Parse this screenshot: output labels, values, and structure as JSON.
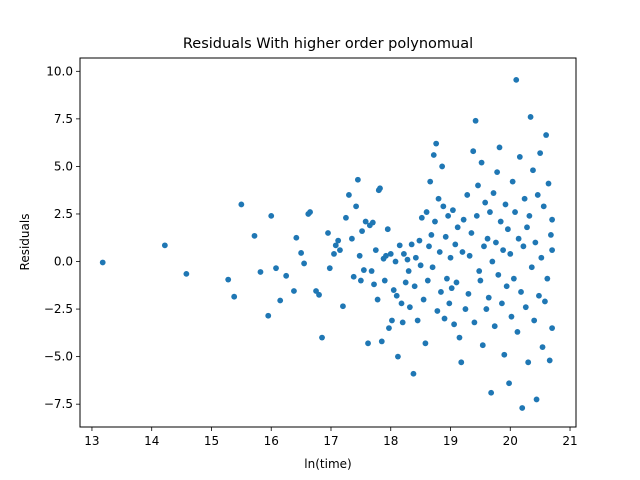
{
  "chart_data": {
    "type": "scatter",
    "title": "Residuals With higher order polynomual",
    "xlabel": "ln(time)",
    "ylabel": "Residuals",
    "xlim": [
      12.8,
      21.1
    ],
    "ylim": [
      -8.7,
      10.7
    ],
    "xticks": [
      13,
      14,
      15,
      16,
      17,
      18,
      19,
      20,
      21
    ],
    "yticks": [
      -7.5,
      -5.0,
      -2.5,
      0.0,
      2.5,
      5.0,
      7.5,
      10.0
    ],
    "ytick_labels": [
      "−7.5",
      "−5.0",
      "−2.5",
      "0.0",
      "2.5",
      "5.0",
      "7.5",
      "10.0"
    ],
    "grid": false,
    "point_color": "#1f77b4",
    "series": [
      {
        "points": [
          [
            13.18,
            -0.05
          ],
          [
            14.22,
            0.85
          ],
          [
            14.58,
            -0.65
          ],
          [
            15.28,
            -0.95
          ],
          [
            15.38,
            -1.85
          ],
          [
            15.5,
            3.0
          ],
          [
            15.72,
            1.35
          ],
          [
            15.82,
            -0.55
          ],
          [
            15.95,
            -2.85
          ],
          [
            16.0,
            2.4
          ],
          [
            16.08,
            -0.35
          ],
          [
            16.15,
            -2.05
          ],
          [
            16.25,
            -0.75
          ],
          [
            16.38,
            -1.55
          ],
          [
            16.42,
            1.25
          ],
          [
            16.5,
            0.45
          ],
          [
            16.55,
            -0.1
          ],
          [
            16.62,
            2.5
          ],
          [
            16.65,
            2.6
          ],
          [
            16.75,
            -1.55
          ],
          [
            16.8,
            -1.75
          ],
          [
            16.85,
            -4.0
          ],
          [
            16.95,
            1.5
          ],
          [
            16.98,
            -0.35
          ],
          [
            17.05,
            0.4
          ],
          [
            17.08,
            0.85
          ],
          [
            17.12,
            1.1
          ],
          [
            17.15,
            0.6
          ],
          [
            17.2,
            -2.35
          ],
          [
            17.25,
            2.3
          ],
          [
            17.3,
            3.5
          ],
          [
            17.35,
            1.2
          ],
          [
            17.38,
            -0.8
          ],
          [
            17.42,
            2.9
          ],
          [
            17.45,
            4.3
          ],
          [
            17.48,
            0.3
          ],
          [
            17.5,
            -1.0
          ],
          [
            17.52,
            1.6
          ],
          [
            17.55,
            -0.45
          ],
          [
            17.58,
            2.1
          ],
          [
            17.62,
            -4.3
          ],
          [
            17.65,
            1.9
          ],
          [
            17.68,
            -0.5
          ],
          [
            17.7,
            2.05
          ],
          [
            17.72,
            -1.2
          ],
          [
            17.75,
            0.6
          ],
          [
            17.78,
            -2.0
          ],
          [
            17.8,
            3.75
          ],
          [
            17.82,
            3.85
          ],
          [
            17.85,
            -4.2
          ],
          [
            17.88,
            0.15
          ],
          [
            17.9,
            -1.0
          ],
          [
            17.92,
            0.3
          ],
          [
            17.95,
            1.7
          ],
          [
            17.97,
            -3.5
          ],
          [
            18.0,
            0.4
          ],
          [
            18.02,
            -3.1
          ],
          [
            18.05,
            -1.5
          ],
          [
            18.08,
            0.0
          ],
          [
            18.1,
            -1.8
          ],
          [
            18.12,
            -5.0
          ],
          [
            18.15,
            0.85
          ],
          [
            18.18,
            -2.2
          ],
          [
            18.2,
            -3.2
          ],
          [
            18.22,
            0.4
          ],
          [
            18.25,
            -1.1
          ],
          [
            18.28,
            0.1
          ],
          [
            18.3,
            -0.5
          ],
          [
            18.32,
            -2.4
          ],
          [
            18.35,
            0.9
          ],
          [
            18.38,
            -5.9
          ],
          [
            18.4,
            -1.3
          ],
          [
            18.42,
            0.2
          ],
          [
            18.45,
            -3.1
          ],
          [
            18.48,
            1.1
          ],
          [
            18.5,
            -0.2
          ],
          [
            18.52,
            2.3
          ],
          [
            18.55,
            -2.0
          ],
          [
            18.58,
            -4.3
          ],
          [
            18.6,
            2.6
          ],
          [
            18.62,
            -1.0
          ],
          [
            18.64,
            0.8
          ],
          [
            18.66,
            4.2
          ],
          [
            18.68,
            1.4
          ],
          [
            18.7,
            -0.3
          ],
          [
            18.72,
            5.6
          ],
          [
            18.74,
            2.1
          ],
          [
            18.76,
            6.2
          ],
          [
            18.78,
            -2.6
          ],
          [
            18.8,
            3.3
          ],
          [
            18.82,
            0.5
          ],
          [
            18.84,
            -1.6
          ],
          [
            18.86,
            5.0
          ],
          [
            18.88,
            2.9
          ],
          [
            18.9,
            -3.0
          ],
          [
            18.92,
            1.3
          ],
          [
            18.94,
            -0.9
          ],
          [
            18.96,
            2.4
          ],
          [
            18.98,
            -2.2
          ],
          [
            19.0,
            0.2
          ],
          [
            19.02,
            -1.4
          ],
          [
            19.04,
            2.7
          ],
          [
            19.06,
            -3.3
          ],
          [
            19.08,
            0.9
          ],
          [
            19.1,
            -1.1
          ],
          [
            19.12,
            1.8
          ],
          [
            19.15,
            -4.0
          ],
          [
            19.18,
            -5.3
          ],
          [
            19.2,
            0.5
          ],
          [
            19.22,
            2.2
          ],
          [
            19.25,
            -2.5
          ],
          [
            19.28,
            3.5
          ],
          [
            19.3,
            -1.7
          ],
          [
            19.32,
            0.3
          ],
          [
            19.35,
            1.5
          ],
          [
            19.38,
            5.8
          ],
          [
            19.4,
            -3.2
          ],
          [
            19.42,
            7.4
          ],
          [
            19.44,
            2.4
          ],
          [
            19.46,
            4.0
          ],
          [
            19.48,
            -0.5
          ],
          [
            19.5,
            -1.0
          ],
          [
            19.52,
            5.2
          ],
          [
            19.54,
            -4.4
          ],
          [
            19.56,
            0.8
          ],
          [
            19.58,
            3.1
          ],
          [
            19.6,
            -2.5
          ],
          [
            19.62,
            1.2
          ],
          [
            19.64,
            -1.9
          ],
          [
            19.66,
            2.6
          ],
          [
            19.68,
            -6.9
          ],
          [
            19.7,
            0.0
          ],
          [
            19.72,
            3.6
          ],
          [
            19.74,
            -3.4
          ],
          [
            19.76,
            1.0
          ],
          [
            19.78,
            4.7
          ],
          [
            19.8,
            -0.7
          ],
          [
            19.82,
            6.0
          ],
          [
            19.84,
            2.1
          ],
          [
            19.86,
            -2.2
          ],
          [
            19.88,
            0.6
          ],
          [
            19.9,
            -4.9
          ],
          [
            19.92,
            3.0
          ],
          [
            19.94,
            -1.3
          ],
          [
            19.96,
            1.7
          ],
          [
            19.98,
            -6.4
          ],
          [
            20.0,
            0.4
          ],
          [
            20.02,
            -2.9
          ],
          [
            20.04,
            4.2
          ],
          [
            20.06,
            -0.9
          ],
          [
            20.08,
            2.6
          ],
          [
            20.1,
            9.55
          ],
          [
            20.12,
            -3.7
          ],
          [
            20.14,
            1.2
          ],
          [
            20.16,
            5.5
          ],
          [
            20.18,
            -1.6
          ],
          [
            20.2,
            -7.7
          ],
          [
            20.22,
            0.8
          ],
          [
            20.24,
            3.3
          ],
          [
            20.26,
            -2.4
          ],
          [
            20.28,
            1.8
          ],
          [
            20.3,
            -5.3
          ],
          [
            20.32,
            2.4
          ],
          [
            20.34,
            7.6
          ],
          [
            20.36,
            -0.3
          ],
          [
            20.38,
            4.8
          ],
          [
            20.4,
            -3.1
          ],
          [
            20.42,
            1.0
          ],
          [
            20.44,
            -7.25
          ],
          [
            20.46,
            3.5
          ],
          [
            20.48,
            -1.8
          ],
          [
            20.5,
            5.7
          ],
          [
            20.52,
            0.2
          ],
          [
            20.54,
            -4.5
          ],
          [
            20.56,
            2.9
          ],
          [
            20.58,
            -2.1
          ],
          [
            20.6,
            6.65
          ],
          [
            20.62,
            -0.9
          ],
          [
            20.64,
            4.1
          ],
          [
            20.66,
            -5.2
          ],
          [
            20.68,
            1.4
          ],
          [
            20.7,
            -3.5
          ],
          [
            20.7,
            0.6
          ],
          [
            20.7,
            2.2
          ]
        ]
      }
    ]
  }
}
